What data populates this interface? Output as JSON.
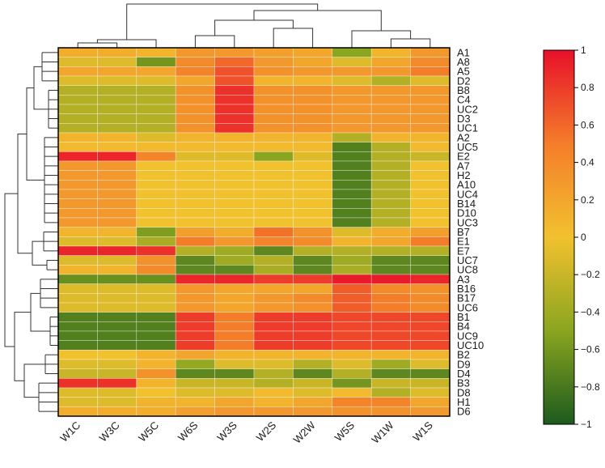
{
  "chart_data": {
    "type": "heatmap",
    "title": "",
    "columns": [
      "W1C",
      "W3C",
      "W5C",
      "W6S",
      "W3S",
      "W2S",
      "W2W",
      "W5S",
      "W1W",
      "W1S"
    ],
    "rows": [
      "A1",
      "A8",
      "A5",
      "D2",
      "B8",
      "C4",
      "UC2",
      "D3",
      "UC1",
      "A2",
      "UC5",
      "E2",
      "A7",
      "H2",
      "A10",
      "UC4",
      "B14",
      "D10",
      "UC3",
      "B7",
      "E1",
      "E7",
      "UC7",
      "UC8",
      "A3",
      "B16",
      "B17",
      "UC6",
      "B1",
      "B4",
      "UC9",
      "UC10",
      "B2",
      "D9",
      "D4",
      "B3",
      "D8",
      "H1",
      "D6"
    ],
    "values": [
      [
        0.15,
        0.15,
        0.1,
        0.3,
        0.3,
        0.25,
        0.2,
        -0.5,
        0.1,
        0.3
      ],
      [
        -0.1,
        -0.1,
        -0.6,
        0.4,
        0.6,
        0.3,
        0.2,
        -0.1,
        0.2,
        0.4
      ],
      [
        0.2,
        0.2,
        0.2,
        0.45,
        0.7,
        0.35,
        0.3,
        0.3,
        0.3,
        0.5
      ],
      [
        -0.1,
        -0.1,
        -0.1,
        0.2,
        0.7,
        0.1,
        0.1,
        -0.1,
        -0.3,
        -0.1
      ],
      [
        -0.3,
        -0.3,
        -0.3,
        0.35,
        0.85,
        0.35,
        0.35,
        0.3,
        0.3,
        0.3
      ],
      [
        -0.3,
        -0.3,
        -0.3,
        0.35,
        0.85,
        0.35,
        0.35,
        0.3,
        0.3,
        0.3
      ],
      [
        -0.3,
        -0.3,
        -0.3,
        0.35,
        0.85,
        0.35,
        0.35,
        0.3,
        0.3,
        0.3
      ],
      [
        -0.3,
        -0.3,
        -0.3,
        0.35,
        0.85,
        0.35,
        0.35,
        0.3,
        0.3,
        0.3
      ],
      [
        -0.3,
        -0.3,
        -0.3,
        0.35,
        0.85,
        0.35,
        0.35,
        0.3,
        0.3,
        0.3
      ],
      [
        0.1,
        0.1,
        -0.1,
        0.1,
        0.1,
        0.1,
        0.1,
        -0.3,
        0.1,
        0.1
      ],
      [
        0.05,
        0.05,
        0.05,
        0.05,
        0.05,
        0.05,
        0.05,
        -0.75,
        -0.3,
        0.05
      ],
      [
        0.9,
        0.9,
        0.45,
        -0.1,
        -0.1,
        -0.5,
        -0.1,
        -0.75,
        -0.3,
        -0.2
      ],
      [
        0.3,
        0.3,
        0.0,
        0.0,
        0.0,
        0.0,
        0.0,
        -0.75,
        -0.3,
        0.0
      ],
      [
        0.3,
        0.3,
        0.0,
        0.0,
        0.0,
        0.0,
        0.0,
        -0.75,
        -0.3,
        0.0
      ],
      [
        0.3,
        0.3,
        0.0,
        0.0,
        0.0,
        0.0,
        0.0,
        -0.75,
        -0.3,
        0.0
      ],
      [
        0.3,
        0.3,
        0.0,
        0.0,
        0.0,
        0.0,
        0.0,
        -0.75,
        -0.3,
        0.0
      ],
      [
        0.3,
        0.3,
        0.0,
        0.0,
        0.0,
        0.0,
        0.0,
        -0.75,
        -0.3,
        0.0
      ],
      [
        0.3,
        0.3,
        0.0,
        0.0,
        0.0,
        0.0,
        0.0,
        -0.75,
        -0.3,
        0.0
      ],
      [
        0.3,
        0.3,
        0.0,
        0.0,
        0.0,
        0.0,
        0.0,
        -0.75,
        -0.3,
        0.0
      ],
      [
        0.1,
        0.1,
        -0.55,
        0.25,
        0.15,
        0.55,
        0.35,
        -0.1,
        0.15,
        0.25
      ],
      [
        -0.1,
        -0.1,
        -0.35,
        0.5,
        0.3,
        0.45,
        0.4,
        0.1,
        0.2,
        0.5
      ],
      [
        0.9,
        0.9,
        0.85,
        -0.3,
        -0.4,
        -0.7,
        -0.3,
        -0.3,
        -0.3,
        -0.3
      ],
      [
        -0.1,
        -0.1,
        0.35,
        -0.7,
        -0.4,
        -0.3,
        -0.7,
        -0.4,
        -0.7,
        -0.7
      ],
      [
        0.1,
        0.1,
        0.4,
        -0.7,
        -0.7,
        -0.35,
        -0.7,
        -0.35,
        -0.7,
        -0.7
      ],
      [
        -0.65,
        -0.65,
        -0.65,
        0.9,
        0.9,
        0.8,
        0.8,
        0.95,
        0.95,
        0.9
      ],
      [
        -0.1,
        -0.1,
        -0.1,
        0.3,
        0.2,
        0.2,
        0.2,
        0.65,
        0.4,
        0.35
      ],
      [
        -0.1,
        -0.1,
        -0.1,
        0.3,
        0.2,
        0.3,
        0.4,
        0.65,
        0.5,
        0.4
      ],
      [
        -0.1,
        -0.1,
        -0.1,
        0.3,
        0.2,
        0.3,
        0.35,
        0.65,
        0.5,
        0.4
      ],
      [
        -0.75,
        -0.75,
        -0.75,
        0.8,
        0.5,
        0.8,
        0.8,
        0.75,
        0.75,
        0.75
      ],
      [
        -0.75,
        -0.75,
        -0.75,
        0.8,
        0.5,
        0.8,
        0.8,
        0.75,
        0.75,
        0.75
      ],
      [
        -0.75,
        -0.75,
        -0.75,
        0.8,
        0.5,
        0.8,
        0.8,
        0.75,
        0.75,
        0.75
      ],
      [
        -0.75,
        -0.75,
        -0.75,
        0.8,
        0.5,
        0.8,
        0.8,
        0.75,
        0.75,
        0.75
      ],
      [
        0.0,
        0.0,
        0.1,
        0.2,
        0.1,
        0.1,
        0.1,
        0.1,
        0.1,
        0.1
      ],
      [
        -0.1,
        -0.1,
        0.1,
        -0.45,
        -0.1,
        -0.1,
        -0.3,
        -0.1,
        -0.4,
        -0.1
      ],
      [
        -0.2,
        -0.2,
        0.35,
        -0.7,
        -0.7,
        -0.3,
        -0.7,
        -0.3,
        -0.7,
        -0.7
      ],
      [
        0.85,
        0.85,
        0.1,
        -0.2,
        -0.2,
        -0.3,
        -0.2,
        -0.6,
        -0.2,
        -0.2
      ],
      [
        -0.1,
        -0.1,
        0.0,
        -0.1,
        -0.1,
        0.05,
        -0.1,
        0.05,
        -0.3,
        -0.1
      ],
      [
        -0.1,
        -0.1,
        0.1,
        0.1,
        0.2,
        0.1,
        0.2,
        0.45,
        0.45,
        0.2
      ],
      [
        0.15,
        0.15,
        0.15,
        0.25,
        0.3,
        0.3,
        0.3,
        0.35,
        0.35,
        0.3
      ]
    ],
    "colorbar": {
      "min": -1,
      "max": 1,
      "ticks": [
        1,
        0.8,
        0.6,
        0.4,
        0.2,
        0,
        -0.2,
        -0.4,
        -0.6,
        -0.8,
        -1
      ],
      "tick_labels": [
        "1",
        "0.8",
        "0.6",
        "0.4",
        "0.2",
        "0",
        "−0.2",
        "−0.4",
        "−0.6",
        "−0.8",
        "−1"
      ],
      "colors": {
        "low": "#1c5a1e",
        "mid_low": "#8aa51f",
        "mid": "#f2c12e",
        "mid_high": "#f47d2a",
        "high": "#e8102a"
      }
    },
    "xlabel": "",
    "ylabel": "",
    "legend": "right",
    "dendrograms": [
      "top",
      "left"
    ]
  }
}
